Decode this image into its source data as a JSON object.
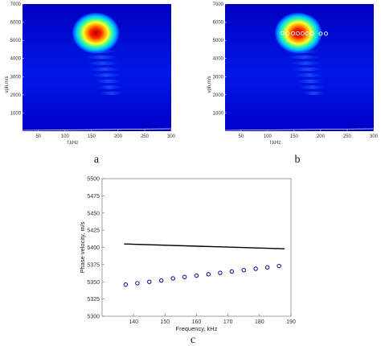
{
  "panels": [
    {
      "label": "a",
      "chart_data": {
        "type": "heatmap",
        "xlabel": "f,kHz",
        "ylabel": "vph,m/s",
        "xlim": [
          20,
          300
        ],
        "ylim": [
          0,
          7000
        ],
        "xticks": [
          "50",
          "100",
          "150",
          "200",
          "250",
          "300"
        ],
        "yticks": [
          "1000",
          "2000",
          "3000",
          "4000",
          "5000",
          "6000",
          "7000"
        ],
        "peak": {
          "f": 158,
          "v": 5400
        },
        "colormap": [
          "#0000b4",
          "#0040ff",
          "#00c8ff",
          "#40ff80",
          "#ffff00",
          "#ff4000",
          "#b40000"
        ]
      }
    },
    {
      "label": "b",
      "chart_data": {
        "type": "heatmap",
        "xlabel": "f,kHz",
        "ylabel": "vph,m/s",
        "xlim": [
          20,
          300
        ],
        "ylim": [
          0,
          7000
        ],
        "xticks": [
          "50",
          "100",
          "150",
          "200",
          "250",
          "300"
        ],
        "yticks": [
          "1000",
          "2000",
          "3000",
          "4000",
          "5000",
          "6000",
          "7000"
        ],
        "peak": {
          "f": 158,
          "v": 5400
        },
        "markers": [
          {
            "f": 128,
            "v": 5400
          },
          {
            "f": 138,
            "v": 5380
          },
          {
            "f": 148,
            "v": 5380
          },
          {
            "f": 157,
            "v": 5380
          },
          {
            "f": 166,
            "v": 5380
          },
          {
            "f": 175,
            "v": 5380
          },
          {
            "f": 184,
            "v": 5380
          },
          {
            "f": 200,
            "v": 5370
          },
          {
            "f": 210,
            "v": 5370
          }
        ]
      }
    },
    {
      "label": "c",
      "chart_data": {
        "type": "scatter",
        "xlabel": "Frequency, kHz",
        "ylabel": "Phase velocity, m/s",
        "xlim": [
          130,
          190
        ],
        "ylim": [
          5300,
          5500
        ],
        "xticks": [
          "140",
          "150",
          "160",
          "170",
          "180",
          "190"
        ],
        "yticks": [
          "5300",
          "5325",
          "5350",
          "5375",
          "5400",
          "5425",
          "5450",
          "5475",
          "5500"
        ],
        "series": [
          {
            "kind": "points",
            "color": "#1a1aa0",
            "x": [
              137.5,
              141.2,
              145.0,
              148.8,
              152.5,
              156.2,
              160.0,
              163.8,
              167.5,
              171.2,
              175.0,
              178.8,
              182.5,
              186.2
            ],
            "y": [
              5346,
              5348,
              5350,
              5352,
              5355,
              5357,
              5359,
              5361,
              5363,
              5365,
              5367,
              5369,
              5371,
              5373
            ]
          },
          {
            "kind": "line",
            "color": "#000000",
            "x": [
              137,
              188
            ],
            "y": [
              5405,
              5398
            ]
          }
        ]
      }
    }
  ]
}
